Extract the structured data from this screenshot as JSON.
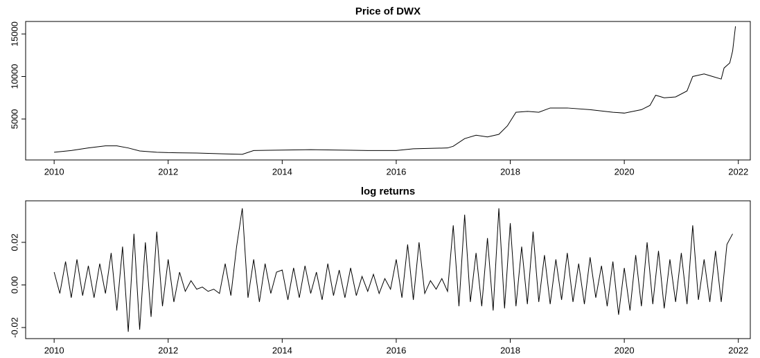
{
  "chart_data": [
    {
      "type": "line",
      "title": "Price of DWX",
      "x": [
        2010.0,
        2010.3,
        2010.6,
        2010.9,
        2011.1,
        2011.3,
        2011.5,
        2011.8,
        2012.0,
        2012.5,
        2013.0,
        2013.3,
        2013.5,
        2014.0,
        2014.5,
        2015.0,
        2015.5,
        2016.0,
        2016.3,
        2016.6,
        2016.9,
        2017.0,
        2017.2,
        2017.4,
        2017.6,
        2017.8,
        2017.95,
        2018.1,
        2018.3,
        2018.5,
        2018.7,
        2019.0,
        2019.4,
        2019.8,
        2020.0,
        2020.3,
        2020.45,
        2020.55,
        2020.7,
        2020.9,
        2021.1,
        2021.2,
        2021.4,
        2021.55,
        2021.7,
        2021.75,
        2021.85,
        2021.9,
        2021.95
      ],
      "series": [
        {
          "color": "#000000",
          "values": [
            1100,
            1300,
            1600,
            1850,
            1850,
            1600,
            1250,
            1100,
            1050,
            1000,
            900,
            850,
            1300,
            1350,
            1400,
            1350,
            1300,
            1300,
            1500,
            1550,
            1600,
            1800,
            2700,
            3100,
            2900,
            3200,
            4200,
            5800,
            5900,
            5800,
            6300,
            6300,
            6100,
            5800,
            5700,
            6100,
            6600,
            7800,
            7500,
            7600,
            8300,
            10000,
            10300,
            10000,
            9700,
            11000,
            11600,
            13000,
            15900
          ]
        }
      ],
      "xlim": [
        2009.5,
        2022.21
      ],
      "xticks": [
        2010,
        2012,
        2014,
        2016,
        2018,
        2020,
        2022
      ],
      "ylim": [
        190,
        16470
      ],
      "yticks": [
        5000,
        10000,
        15000
      ]
    },
    {
      "type": "line",
      "title": "log returns",
      "x": [
        2010.0,
        2010.1,
        2010.2,
        2010.3,
        2010.4,
        2010.5,
        2010.6,
        2010.7,
        2010.8,
        2010.9,
        2011.0,
        2011.1,
        2011.2,
        2011.3,
        2011.4,
        2011.5,
        2011.6,
        2011.7,
        2011.8,
        2011.9,
        2012.0,
        2012.1,
        2012.2,
        2012.3,
        2012.4,
        2012.5,
        2012.6,
        2012.7,
        2012.8,
        2012.9,
        2013.0,
        2013.1,
        2013.2,
        2013.3,
        2013.4,
        2013.5,
        2013.6,
        2013.7,
        2013.8,
        2013.9,
        2014.0,
        2014.1,
        2014.2,
        2014.3,
        2014.4,
        2014.5,
        2014.6,
        2014.7,
        2014.8,
        2014.9,
        2015.0,
        2015.1,
        2015.2,
        2015.3,
        2015.4,
        2015.5,
        2015.6,
        2015.7,
        2015.8,
        2015.9,
        2016.0,
        2016.1,
        2016.2,
        2016.3,
        2016.4,
        2016.5,
        2016.6,
        2016.7,
        2016.8,
        2016.9,
        2017.0,
        2017.1,
        2017.2,
        2017.3,
        2017.4,
        2017.5,
        2017.6,
        2017.7,
        2017.8,
        2017.9,
        2018.0,
        2018.1,
        2018.2,
        2018.3,
        2018.4,
        2018.5,
        2018.6,
        2018.7,
        2018.8,
        2018.9,
        2019.0,
        2019.1,
        2019.2,
        2019.3,
        2019.4,
        2019.5,
        2019.6,
        2019.7,
        2019.8,
        2019.9,
        2020.0,
        2020.1,
        2020.2,
        2020.3,
        2020.4,
        2020.5,
        2020.6,
        2020.7,
        2020.8,
        2020.9,
        2021.0,
        2021.1,
        2021.2,
        2021.3,
        2021.4,
        2021.5,
        2021.6,
        2021.7,
        2021.8,
        2021.9
      ],
      "series": [
        {
          "color": "#000000",
          "values": [
            0.006,
            -0.004,
            0.011,
            -0.006,
            0.012,
            -0.005,
            0.009,
            -0.006,
            0.01,
            -0.004,
            0.015,
            -0.012,
            0.018,
            -0.022,
            0.024,
            -0.021,
            0.02,
            -0.015,
            0.025,
            -0.01,
            0.012,
            -0.008,
            0.006,
            -0.003,
            0.002,
            -0.002,
            -0.001,
            -0.003,
            -0.002,
            -0.004,
            0.01,
            -0.005,
            0.018,
            0.036,
            -0.006,
            0.012,
            -0.008,
            0.01,
            -0.004,
            0.006,
            0.007,
            -0.007,
            0.008,
            -0.006,
            0.009,
            -0.004,
            0.006,
            -0.007,
            0.01,
            -0.005,
            0.007,
            -0.006,
            0.008,
            -0.005,
            0.004,
            -0.003,
            0.005,
            -0.004,
            0.003,
            -0.002,
            0.012,
            -0.006,
            0.019,
            -0.007,
            0.02,
            -0.004,
            0.002,
            -0.002,
            0.003,
            -0.003,
            0.028,
            -0.01,
            0.033,
            -0.008,
            0.015,
            -0.01,
            0.022,
            -0.012,
            0.036,
            -0.011,
            0.029,
            -0.01,
            0.018,
            -0.009,
            0.025,
            -0.008,
            0.014,
            -0.009,
            0.012,
            -0.007,
            0.015,
            -0.008,
            0.01,
            -0.009,
            0.013,
            -0.006,
            0.009,
            -0.01,
            0.011,
            -0.014,
            0.008,
            -0.012,
            0.014,
            -0.01,
            0.02,
            -0.009,
            0.016,
            -0.011,
            0.012,
            -0.008,
            0.015,
            -0.009,
            0.028,
            -0.007,
            0.012,
            -0.008,
            0.016,
            -0.008,
            0.019,
            0.024
          ]
        }
      ],
      "xlim": [
        2009.5,
        2022.21
      ],
      "xticks": [
        2010,
        2012,
        2014,
        2016,
        2018,
        2020,
        2022
      ],
      "ylim": [
        -0.0252,
        0.0395
      ],
      "yticks": [
        -0.02,
        {
          "value": 0,
          "label": "0.00"
        },
        0.02
      ]
    }
  ]
}
